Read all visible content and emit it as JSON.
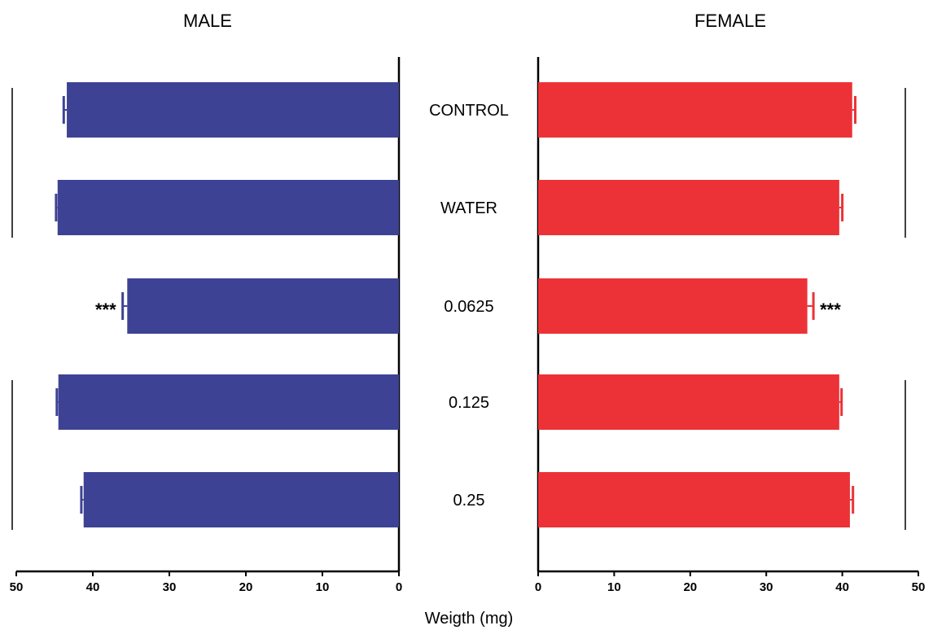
{
  "chart_data": {
    "type": "bar",
    "orientation": "horizontal",
    "layout": "back-to-back",
    "xlabel": "Weigth (mg)",
    "categories": [
      "CONTROL",
      "WATER",
      "0.0625",
      "0.125",
      "0.25"
    ],
    "xlim": [
      0,
      50
    ],
    "xticks": [
      0,
      10,
      20,
      30,
      40,
      50
    ],
    "grid": false,
    "series": [
      {
        "name": "MALE",
        "side": "left",
        "color": "#3e4294",
        "values": [
          43.4,
          44.6,
          35.5,
          44.5,
          41.2
        ],
        "errors": [
          0.4,
          0.2,
          0.6,
          0.2,
          0.3
        ],
        "significance": [
          "",
          "",
          "***",
          "",
          ""
        ]
      },
      {
        "name": "FEMALE",
        "side": "right",
        "color": "#ec3237",
        "values": [
          41.3,
          39.6,
          35.4,
          39.6,
          41.0
        ],
        "errors": [
          0.4,
          0.4,
          0.8,
          0.3,
          0.4
        ],
        "significance": [
          "",
          "",
          "***",
          "",
          ""
        ]
      }
    ],
    "group_brackets": [
      {
        "side": "left",
        "categories": [
          "CONTROL",
          "WATER"
        ]
      },
      {
        "side": "left",
        "categories": [
          "0.125",
          "0.25"
        ]
      },
      {
        "side": "right",
        "categories": [
          "CONTROL",
          "WATER"
        ]
      },
      {
        "side": "right",
        "categories": [
          "0.125",
          "0.25"
        ]
      }
    ]
  }
}
